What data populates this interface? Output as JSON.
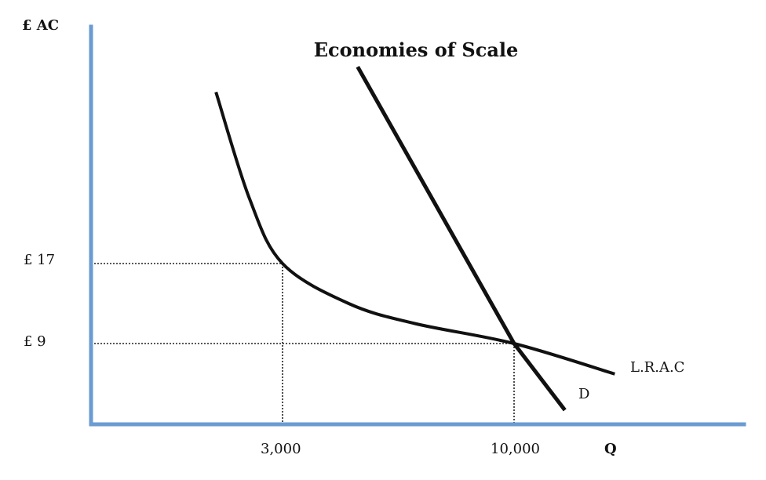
{
  "chart_data": {
    "type": "line",
    "title": "Economies of Scale",
    "ylabel": "£ AC",
    "xlabel": "Q",
    "x_ticks": [
      {
        "value": 3000,
        "label": "3,000"
      },
      {
        "value": 10000,
        "label": "10,000"
      }
    ],
    "y_ticks": [
      {
        "value": 17,
        "label": "£ 17"
      },
      {
        "value": 9,
        "label": "£ 9"
      }
    ],
    "series": [
      {
        "name": "L.R.A.C",
        "points": [
          [
            1000,
            34
          ],
          [
            2000,
            23.5
          ],
          [
            3000,
            17
          ],
          [
            5000,
            13
          ],
          [
            7000,
            11
          ],
          [
            10000,
            9
          ],
          [
            13000,
            6
          ]
        ]
      },
      {
        "name": "D",
        "points": [
          [
            5300,
            36.5
          ],
          [
            10000,
            9
          ],
          [
            11500,
            2.5
          ]
        ]
      }
    ],
    "guides": [
      {
        "x": 3000,
        "y": 17
      },
      {
        "x": 10000,
        "y": 9
      }
    ],
    "grid": false,
    "axis_color": "#6a9bd1",
    "line_color": "#111111"
  }
}
